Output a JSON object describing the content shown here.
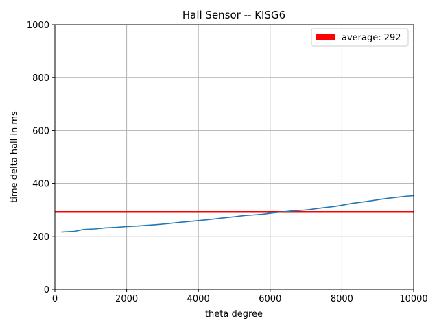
{
  "chart_data": {
    "type": "line",
    "title": "Hall Sensor  --  KISG6",
    "xlabel": "theta degree",
    "ylabel": "time delta hall in ms",
    "xlim": [
      0,
      10000
    ],
    "ylim": [
      0,
      1000
    ],
    "xticks": [
      0,
      2000,
      4000,
      6000,
      8000,
      10000
    ],
    "yticks": [
      0,
      200,
      400,
      600,
      800,
      1000
    ],
    "grid": true,
    "legend_position": "top-right",
    "series": [
      {
        "color": "#1f77b4",
        "x": [
          180,
          550,
          800,
          1100,
          1400,
          1700,
          2000,
          2300,
          2600,
          2900,
          3200,
          3500,
          3800,
          4100,
          4400,
          4700,
          5000,
          5300,
          5550,
          5800,
          6100,
          6400,
          6650,
          6850,
          7100,
          7300,
          7550,
          7800,
          8050,
          8300,
          8600,
          8850,
          9050,
          9250,
          9500,
          9750,
          10000
        ],
        "y": [
          216,
          219,
          226,
          228,
          232,
          234,
          237,
          239,
          242,
          245,
          249,
          253,
          257,
          261,
          265,
          270,
          274,
          279,
          281,
          284,
          289,
          293,
          297,
          298,
          301,
          305,
          309,
          313,
          319,
          325,
          330,
          335,
          339,
          343,
          347,
          351,
          354
        ]
      }
    ],
    "hlines": [
      {
        "y": 292,
        "name": "average: 292",
        "color": "#ff0000"
      }
    ]
  }
}
